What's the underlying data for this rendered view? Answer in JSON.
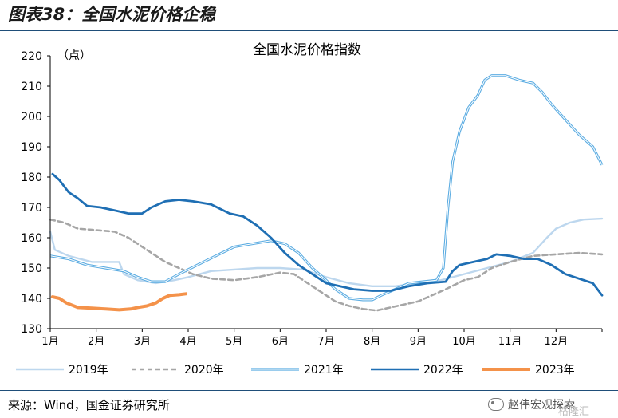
{
  "header": {
    "figure_title": "图表38：全国水泥价格企稳"
  },
  "footer": {
    "source": "来源：Wind，国金证券研究所",
    "watermark": "赵伟宏观探索",
    "corner_mark": "格隆汇"
  },
  "chart_data": {
    "type": "line",
    "title": "全国水泥价格指数",
    "ylabel": "（点）",
    "xlabel": "",
    "ylim": [
      130,
      220
    ],
    "yticks": [
      130,
      140,
      150,
      160,
      170,
      180,
      190,
      200,
      210,
      220
    ],
    "xlim": [
      1,
      13
    ],
    "xticks": [
      1,
      2,
      3,
      4,
      5,
      6,
      7,
      8,
      9,
      10,
      11,
      12
    ],
    "xtick_labels": [
      "1月",
      "2月",
      "3月",
      "4月",
      "5月",
      "6月",
      "7月",
      "8月",
      "9月",
      "10月",
      "11月",
      "12月"
    ],
    "grid": false,
    "legend": "bottom",
    "series": [
      {
        "name": "2019年",
        "color": "#bdd7ee",
        "style": "solid",
        "points": [
          [
            1.0,
            162
          ],
          [
            1.1,
            156
          ],
          [
            1.4,
            154
          ],
          [
            1.9,
            152
          ],
          [
            2.3,
            152
          ],
          [
            2.5,
            152
          ],
          [
            2.6,
            148
          ],
          [
            2.9,
            146
          ],
          [
            3.3,
            145
          ],
          [
            3.7,
            146
          ],
          [
            4.0,
            147
          ],
          [
            4.5,
            149
          ],
          [
            5.0,
            149.5
          ],
          [
            5.5,
            150
          ],
          [
            6.0,
            150
          ],
          [
            6.5,
            149.5
          ],
          [
            7.0,
            147
          ],
          [
            7.5,
            145
          ],
          [
            8.0,
            144
          ],
          [
            8.5,
            144
          ],
          [
            9.0,
            145
          ],
          [
            9.5,
            146
          ],
          [
            10.0,
            148
          ],
          [
            10.5,
            150
          ],
          [
            11.0,
            152
          ],
          [
            11.5,
            155
          ],
          [
            11.8,
            160
          ],
          [
            12.0,
            163
          ],
          [
            12.3,
            165
          ],
          [
            12.6,
            166
          ],
          [
            13.0,
            166.3
          ]
        ]
      },
      {
        "name": "2020年",
        "color": "#a6a6a6",
        "style": "dashed",
        "points": [
          [
            1.0,
            166
          ],
          [
            1.3,
            165
          ],
          [
            1.6,
            163
          ],
          [
            2.0,
            162.5
          ],
          [
            2.4,
            162
          ],
          [
            2.7,
            160
          ],
          [
            3.0,
            157
          ],
          [
            3.2,
            155
          ],
          [
            3.5,
            152
          ],
          [
            3.8,
            150
          ],
          [
            4.1,
            148
          ],
          [
            4.5,
            146.5
          ],
          [
            5.0,
            146
          ],
          [
            5.5,
            147
          ],
          [
            6.0,
            148.5
          ],
          [
            6.3,
            148
          ],
          [
            6.6,
            145
          ],
          [
            6.9,
            142
          ],
          [
            7.2,
            139
          ],
          [
            7.5,
            137.5
          ],
          [
            7.8,
            136.5
          ],
          [
            8.1,
            136
          ],
          [
            8.4,
            137
          ],
          [
            8.7,
            138
          ],
          [
            9.0,
            139
          ],
          [
            9.3,
            141
          ],
          [
            9.6,
            143
          ],
          [
            10.0,
            146
          ],
          [
            10.3,
            147
          ],
          [
            10.6,
            150
          ],
          [
            11.0,
            152
          ],
          [
            11.5,
            154
          ],
          [
            12.0,
            154.5
          ],
          [
            12.5,
            155
          ],
          [
            13.0,
            154.5
          ]
        ]
      },
      {
        "name": "2021年",
        "color": "#5dade2",
        "style": "double",
        "points": [
          [
            1.0,
            154
          ],
          [
            1.4,
            153
          ],
          [
            1.8,
            151
          ],
          [
            2.2,
            150
          ],
          [
            2.6,
            149
          ],
          [
            2.9,
            147
          ],
          [
            3.2,
            145.5
          ],
          [
            3.5,
            145.5
          ],
          [
            3.8,
            148
          ],
          [
            4.2,
            151
          ],
          [
            4.6,
            154
          ],
          [
            5.0,
            157
          ],
          [
            5.4,
            158
          ],
          [
            5.8,
            159
          ],
          [
            6.1,
            158
          ],
          [
            6.4,
            155
          ],
          [
            6.7,
            150
          ],
          [
            7.0,
            146
          ],
          [
            7.2,
            143
          ],
          [
            7.5,
            140
          ],
          [
            7.8,
            139.5
          ],
          [
            8.0,
            139.5
          ],
          [
            8.2,
            141
          ],
          [
            8.5,
            143
          ],
          [
            8.8,
            145
          ],
          [
            9.1,
            145.5
          ],
          [
            9.4,
            146
          ],
          [
            9.55,
            150
          ],
          [
            9.65,
            170
          ],
          [
            9.75,
            185
          ],
          [
            9.9,
            195
          ],
          [
            10.1,
            203
          ],
          [
            10.3,
            207
          ],
          [
            10.45,
            212
          ],
          [
            10.6,
            213.5
          ],
          [
            10.9,
            213.5
          ],
          [
            11.2,
            212
          ],
          [
            11.5,
            211
          ],
          [
            11.7,
            208
          ],
          [
            11.9,
            204
          ],
          [
            12.2,
            199
          ],
          [
            12.5,
            194
          ],
          [
            12.8,
            190
          ],
          [
            13.0,
            184
          ]
        ]
      },
      {
        "name": "2022年",
        "color": "#1f6fb4",
        "style": "solid",
        "points": [
          [
            1.05,
            181
          ],
          [
            1.2,
            179
          ],
          [
            1.4,
            175
          ],
          [
            1.6,
            173
          ],
          [
            1.8,
            170.5
          ],
          [
            2.1,
            170
          ],
          [
            2.4,
            169
          ],
          [
            2.7,
            168
          ],
          [
            3.0,
            168
          ],
          [
            3.2,
            170
          ],
          [
            3.5,
            172
          ],
          [
            3.8,
            172.5
          ],
          [
            4.1,
            172
          ],
          [
            4.5,
            171
          ],
          [
            4.9,
            168
          ],
          [
            5.2,
            167
          ],
          [
            5.5,
            164
          ],
          [
            5.8,
            160
          ],
          [
            6.1,
            155
          ],
          [
            6.4,
            151
          ],
          [
            6.7,
            148
          ],
          [
            7.0,
            145
          ],
          [
            7.3,
            144
          ],
          [
            7.6,
            143
          ],
          [
            8.0,
            142.5
          ],
          [
            8.4,
            142.5
          ],
          [
            8.8,
            144
          ],
          [
            9.2,
            145
          ],
          [
            9.6,
            145.5
          ],
          [
            9.75,
            149
          ],
          [
            9.9,
            151
          ],
          [
            10.2,
            152
          ],
          [
            10.5,
            153
          ],
          [
            10.7,
            154.5
          ],
          [
            11.0,
            154
          ],
          [
            11.3,
            153
          ],
          [
            11.6,
            153
          ],
          [
            11.9,
            151
          ],
          [
            12.2,
            148
          ],
          [
            12.5,
            146.5
          ],
          [
            12.8,
            145
          ],
          [
            13.0,
            141
          ]
        ]
      },
      {
        "name": "2023年",
        "color": "#f4924a",
        "style": "solid",
        "points": [
          [
            1.05,
            140.5
          ],
          [
            1.2,
            140
          ],
          [
            1.35,
            138.5
          ],
          [
            1.6,
            137
          ],
          [
            1.9,
            136.8
          ],
          [
            2.2,
            136.5
          ],
          [
            2.5,
            136.2
          ],
          [
            2.75,
            136.5
          ],
          [
            2.9,
            137
          ],
          [
            3.1,
            137.5
          ],
          [
            3.3,
            138.5
          ],
          [
            3.45,
            140
          ],
          [
            3.6,
            141
          ],
          [
            3.8,
            141.2
          ],
          [
            3.95,
            141.5
          ]
        ]
      }
    ]
  }
}
